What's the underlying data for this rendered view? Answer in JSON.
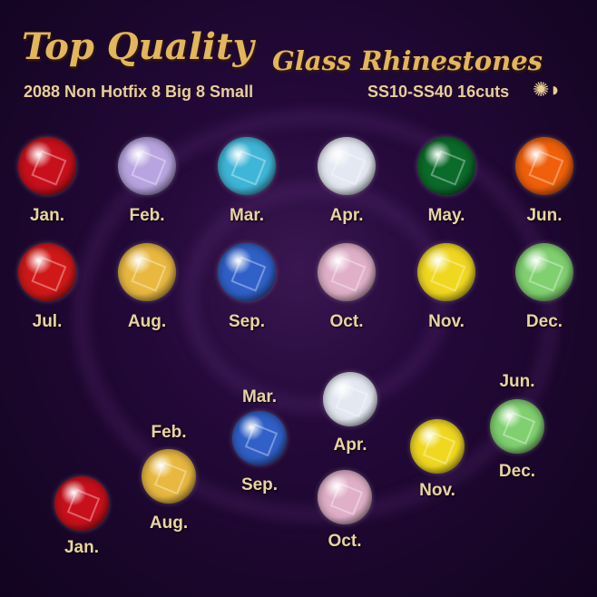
{
  "header": {
    "title_main": "Top Quality",
    "title_secondary": "Glass Rhinestones",
    "subtitle_left": "2088 Non Hotfix 8 Big 8 Small",
    "subtitle_right": "SS10-SS40 16cuts",
    "cut_icon": "rhinestone-cut-icon"
  },
  "grid": [
    {
      "label": "Jan.",
      "color": "#c8101c"
    },
    {
      "label": "Feb.",
      "color": "#b8a4e0"
    },
    {
      "label": "Mar.",
      "color": "#3fb6d8"
    },
    {
      "label": "Apr.",
      "color": "#e4e8f2"
    },
    {
      "label": "May.",
      "color": "#0b6b2a"
    },
    {
      "label": "Jun.",
      "color": "#f0600a"
    },
    {
      "label": "Jul.",
      "color": "#d01818"
    },
    {
      "label": "Aug.",
      "color": "#e8b840"
    },
    {
      "label": "Sep.",
      "color": "#3060c8"
    },
    {
      "label": "Oct.",
      "color": "#e0b0c8"
    },
    {
      "label": "Nov.",
      "color": "#f0d820"
    },
    {
      "label": "Dec.",
      "color": "#80d070"
    }
  ],
  "lower": [
    {
      "labels": [
        "Jan."
      ],
      "color": "#c8101c"
    },
    {
      "labels": [
        "Feb.",
        "Aug."
      ],
      "color": "#e8b840"
    },
    {
      "labels": [
        "Mar.",
        "Sep."
      ],
      "color": "#3060c8"
    },
    {
      "labels": [
        "Apr."
      ],
      "color": "#e4e8f2"
    },
    {
      "labels": [
        "Oct."
      ],
      "color": "#e0b0c8"
    },
    {
      "labels": [
        "Nov."
      ],
      "color": "#f0d820"
    },
    {
      "labels": [
        "Jun.",
        "Dec."
      ],
      "color": "#80d070"
    }
  ]
}
